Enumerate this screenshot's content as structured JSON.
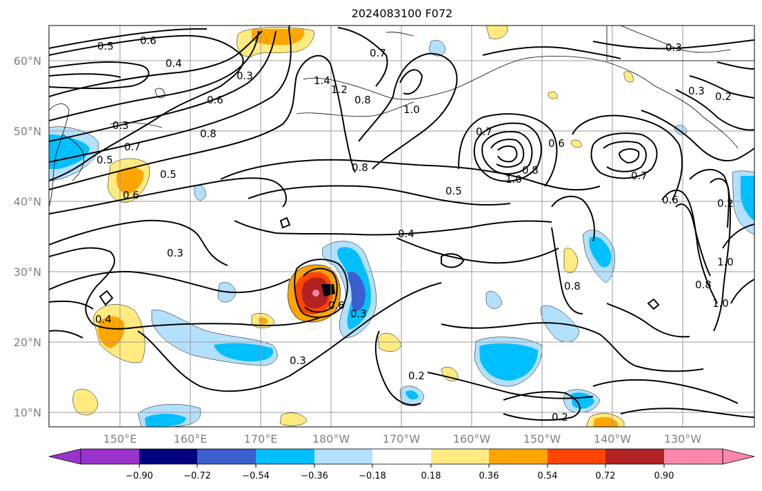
{
  "title": "2024083100 F072",
  "lat_labels": [
    "60°N",
    "50°N",
    "40°N",
    "30°N",
    "20°N",
    "10°N"
  ],
  "lon_labels": [
    "150°E",
    "160°E",
    "170°E",
    "180°W",
    "170°W",
    "160°W",
    "150°W",
    "140°W",
    "130°W"
  ],
  "colorbar": {
    "ticks": [
      "−0.90",
      "−0.72",
      "−0.54",
      "−0.36",
      "−0.18",
      "0.18",
      "0.36",
      "0.54",
      "0.72",
      "0.90"
    ],
    "colors": [
      "#9933cc",
      "#000080",
      "#3b5fcf",
      "#00bfff",
      "#b3e0ff",
      "#ffffff",
      "#ffeb80",
      "#ffa500",
      "#ff4500",
      "#b22222",
      "#ff88aa"
    ]
  },
  "contour_labels": [
    {
      "text": "0.6"
    },
    {
      "text": "0.5"
    },
    {
      "text": "0.4"
    },
    {
      "text": "0.3"
    },
    {
      "text": "0.6"
    },
    {
      "text": "0.3"
    },
    {
      "text": "0.5"
    },
    {
      "text": "0.7"
    },
    {
      "text": "0.8"
    },
    {
      "text": "0.5"
    },
    {
      "text": "0.6"
    },
    {
      "text": "0.3"
    },
    {
      "text": "0.4"
    },
    {
      "text": "1.4"
    },
    {
      "text": "1.2"
    },
    {
      "text": "0.8"
    },
    {
      "text": "0.7"
    },
    {
      "text": "1.0"
    },
    {
      "text": "0.8"
    },
    {
      "text": "0.4"
    },
    {
      "text": "0.5"
    },
    {
      "text": "0.7"
    },
    {
      "text": "1.0"
    },
    {
      "text": "0.8"
    },
    {
      "text": "0.6"
    },
    {
      "text": "0.7"
    },
    {
      "text": "0.6"
    },
    {
      "text": "0.3"
    },
    {
      "text": "0.3"
    },
    {
      "text": "0.2"
    },
    {
      "text": "0.3"
    },
    {
      "text": "0.6"
    },
    {
      "text": "0.3"
    },
    {
      "text": "0.2"
    },
    {
      "text": "0.2"
    },
    {
      "text": "0.2"
    },
    {
      "text": "0.8"
    },
    {
      "text": "1.0"
    },
    {
      "text": "0.8"
    },
    {
      "text": "1.0"
    }
  ]
}
